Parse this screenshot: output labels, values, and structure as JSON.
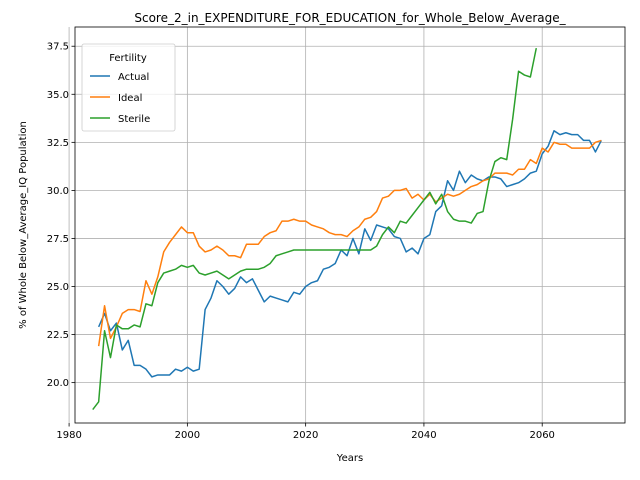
{
  "chart_data": {
    "type": "line",
    "title": "Score_2_in_EXPENDITURE_FOR_EDUCATION_for_Whole_Below_Average_",
    "xlabel": "Years",
    "ylabel": "% of Whole Below_Average_IQ Population",
    "xlim": [
      1981,
      2074
    ],
    "ylim": [
      17.9,
      38.5
    ],
    "xticks": [
      1980,
      2000,
      2020,
      2040,
      2060
    ],
    "xtick_labels": [
      "1980",
      "2000",
      "2020",
      "2040",
      "2060"
    ],
    "yticks": [
      20.0,
      22.5,
      25.0,
      27.5,
      30.0,
      32.5,
      35.0,
      37.5
    ],
    "ytick_labels": [
      "20.0",
      "22.5",
      "25.0",
      "27.5",
      "30.0",
      "32.5",
      "35.0",
      "37.5"
    ],
    "grid": true,
    "legend": {
      "title": "Fertility",
      "placement": "upper-left"
    },
    "series": [
      {
        "name": "Actual",
        "color": "#1f77b4",
        "points": [
          [
            1985,
            22.9
          ],
          [
            1986,
            23.6
          ],
          [
            1987,
            22.7
          ],
          [
            1988,
            23.1
          ],
          [
            1989,
            21.7
          ],
          [
            1990,
            22.2
          ],
          [
            1991,
            20.9
          ],
          [
            1992,
            20.9
          ],
          [
            1993,
            20.7
          ],
          [
            1994,
            20.3
          ],
          [
            1995,
            20.4
          ],
          [
            1996,
            20.4
          ],
          [
            1997,
            20.4
          ],
          [
            1998,
            20.7
          ],
          [
            1999,
            20.6
          ],
          [
            2000,
            20.8
          ],
          [
            2001,
            20.6
          ],
          [
            2002,
            20.7
          ],
          [
            2003,
            23.8
          ],
          [
            2004,
            24.4
          ],
          [
            2005,
            25.3
          ],
          [
            2006,
            25.0
          ],
          [
            2007,
            24.6
          ],
          [
            2008,
            24.9
          ],
          [
            2009,
            25.5
          ],
          [
            2010,
            25.2
          ],
          [
            2011,
            25.4
          ],
          [
            2012,
            24.8
          ],
          [
            2013,
            24.2
          ],
          [
            2014,
            24.5
          ],
          [
            2015,
            24.4
          ],
          [
            2016,
            24.3
          ],
          [
            2017,
            24.2
          ],
          [
            2018,
            24.7
          ],
          [
            2019,
            24.6
          ],
          [
            2020,
            25.0
          ],
          [
            2021,
            25.2
          ],
          [
            2022,
            25.3
          ],
          [
            2023,
            25.9
          ],
          [
            2024,
            26.0
          ],
          [
            2025,
            26.2
          ],
          [
            2026,
            26.9
          ],
          [
            2027,
            26.6
          ],
          [
            2028,
            27.5
          ],
          [
            2029,
            26.7
          ],
          [
            2030,
            28.0
          ],
          [
            2031,
            27.4
          ],
          [
            2032,
            28.2
          ],
          [
            2033,
            28.1
          ],
          [
            2034,
            28.0
          ],
          [
            2035,
            27.6
          ],
          [
            2036,
            27.5
          ],
          [
            2037,
            26.8
          ],
          [
            2038,
            27.0
          ],
          [
            2039,
            26.7
          ],
          [
            2040,
            27.5
          ],
          [
            2041,
            27.7
          ],
          [
            2042,
            28.9
          ],
          [
            2043,
            29.2
          ],
          [
            2044,
            30.5
          ],
          [
            2045,
            30.0
          ],
          [
            2046,
            31.0
          ],
          [
            2047,
            30.4
          ],
          [
            2048,
            30.8
          ],
          [
            2049,
            30.6
          ],
          [
            2050,
            30.5
          ],
          [
            2051,
            30.7
          ],
          [
            2052,
            30.7
          ],
          [
            2053,
            30.6
          ],
          [
            2054,
            30.2
          ],
          [
            2055,
            30.3
          ],
          [
            2056,
            30.4
          ],
          [
            2057,
            30.6
          ],
          [
            2058,
            30.9
          ],
          [
            2059,
            31.0
          ],
          [
            2060,
            31.9
          ],
          [
            2061,
            32.3
          ],
          [
            2062,
            33.1
          ],
          [
            2063,
            32.9
          ],
          [
            2064,
            33.0
          ],
          [
            2065,
            32.9
          ],
          [
            2066,
            32.9
          ],
          [
            2067,
            32.6
          ],
          [
            2068,
            32.6
          ],
          [
            2069,
            32.0
          ],
          [
            2070,
            32.6
          ]
        ]
      },
      {
        "name": "Ideal",
        "color": "#ff7f0e",
        "points": [
          [
            1985,
            21.9
          ],
          [
            1986,
            24.0
          ],
          [
            1987,
            22.3
          ],
          [
            1988,
            22.9
          ],
          [
            1989,
            23.6
          ],
          [
            1990,
            23.8
          ],
          [
            1991,
            23.8
          ],
          [
            1992,
            23.7
          ],
          [
            1993,
            25.3
          ],
          [
            1994,
            24.6
          ],
          [
            1995,
            25.5
          ],
          [
            1996,
            26.8
          ],
          [
            1997,
            27.3
          ],
          [
            1998,
            27.7
          ],
          [
            1999,
            28.1
          ],
          [
            2000,
            27.8
          ],
          [
            2001,
            27.8
          ],
          [
            2002,
            27.1
          ],
          [
            2003,
            26.8
          ],
          [
            2004,
            26.9
          ],
          [
            2005,
            27.1
          ],
          [
            2006,
            26.9
          ],
          [
            2007,
            26.6
          ],
          [
            2008,
            26.6
          ],
          [
            2009,
            26.5
          ],
          [
            2010,
            27.2
          ],
          [
            2011,
            27.2
          ],
          [
            2012,
            27.2
          ],
          [
            2013,
            27.6
          ],
          [
            2014,
            27.8
          ],
          [
            2015,
            27.9
          ],
          [
            2016,
            28.4
          ],
          [
            2017,
            28.4
          ],
          [
            2018,
            28.5
          ],
          [
            2019,
            28.4
          ],
          [
            2020,
            28.4
          ],
          [
            2021,
            28.2
          ],
          [
            2022,
            28.1
          ],
          [
            2023,
            28.0
          ],
          [
            2024,
            27.8
          ],
          [
            2025,
            27.7
          ],
          [
            2026,
            27.7
          ],
          [
            2027,
            27.6
          ],
          [
            2028,
            27.9
          ],
          [
            2029,
            28.1
          ],
          [
            2030,
            28.5
          ],
          [
            2031,
            28.6
          ],
          [
            2032,
            28.9
          ],
          [
            2033,
            29.6
          ],
          [
            2034,
            29.7
          ],
          [
            2035,
            30.0
          ],
          [
            2036,
            30.0
          ],
          [
            2037,
            30.1
          ],
          [
            2038,
            29.6
          ],
          [
            2039,
            29.8
          ],
          [
            2040,
            29.5
          ],
          [
            2041,
            29.8
          ],
          [
            2042,
            29.4
          ],
          [
            2043,
            29.6
          ],
          [
            2044,
            29.8
          ],
          [
            2045,
            29.7
          ],
          [
            2046,
            29.8
          ],
          [
            2047,
            30.0
          ],
          [
            2048,
            30.2
          ],
          [
            2049,
            30.3
          ],
          [
            2050,
            30.5
          ],
          [
            2051,
            30.6
          ],
          [
            2052,
            30.9
          ],
          [
            2053,
            30.9
          ],
          [
            2054,
            30.9
          ],
          [
            2055,
            30.8
          ],
          [
            2056,
            31.1
          ],
          [
            2057,
            31.1
          ],
          [
            2058,
            31.6
          ],
          [
            2059,
            31.4
          ],
          [
            2060,
            32.2
          ],
          [
            2061,
            32.0
          ],
          [
            2062,
            32.5
          ],
          [
            2063,
            32.4
          ],
          [
            2064,
            32.4
          ],
          [
            2065,
            32.2
          ],
          [
            2066,
            32.2
          ],
          [
            2067,
            32.2
          ],
          [
            2068,
            32.2
          ],
          [
            2069,
            32.5
          ],
          [
            2070,
            32.6
          ]
        ]
      },
      {
        "name": "Sterile",
        "color": "#2ca02c",
        "points": [
          [
            1984,
            18.6
          ],
          [
            1985,
            19.0
          ],
          [
            1986,
            22.7
          ],
          [
            1987,
            21.3
          ],
          [
            1988,
            23.0
          ],
          [
            1989,
            22.8
          ],
          [
            1990,
            22.8
          ],
          [
            1991,
            23.0
          ],
          [
            1992,
            22.9
          ],
          [
            1993,
            24.1
          ],
          [
            1994,
            24.0
          ],
          [
            1995,
            25.2
          ],
          [
            1996,
            25.7
          ],
          [
            1997,
            25.8
          ],
          [
            1998,
            25.9
          ],
          [
            1999,
            26.1
          ],
          [
            2000,
            26.0
          ],
          [
            2001,
            26.1
          ],
          [
            2002,
            25.7
          ],
          [
            2003,
            25.6
          ],
          [
            2004,
            25.7
          ],
          [
            2005,
            25.8
          ],
          [
            2006,
            25.6
          ],
          [
            2007,
            25.4
          ],
          [
            2008,
            25.6
          ],
          [
            2009,
            25.8
          ],
          [
            2010,
            25.9
          ],
          [
            2011,
            25.9
          ],
          [
            2012,
            25.9
          ],
          [
            2013,
            26.0
          ],
          [
            2014,
            26.2
          ],
          [
            2015,
            26.6
          ],
          [
            2016,
            26.7
          ],
          [
            2017,
            26.8
          ],
          [
            2018,
            26.9
          ],
          [
            2019,
            26.9
          ],
          [
            2020,
            26.9
          ],
          [
            2021,
            26.9
          ],
          [
            2022,
            26.9
          ],
          [
            2023,
            26.9
          ],
          [
            2024,
            26.9
          ],
          [
            2025,
            26.9
          ],
          [
            2026,
            26.9
          ],
          [
            2027,
            26.9
          ],
          [
            2028,
            26.9
          ],
          [
            2029,
            26.9
          ],
          [
            2030,
            26.9
          ],
          [
            2031,
            26.9
          ],
          [
            2032,
            27.1
          ],
          [
            2033,
            27.7
          ],
          [
            2034,
            28.1
          ],
          [
            2035,
            27.8
          ],
          [
            2036,
            28.4
          ],
          [
            2037,
            28.3
          ],
          [
            2038,
            28.7
          ],
          [
            2039,
            29.1
          ],
          [
            2040,
            29.5
          ],
          [
            2041,
            29.9
          ],
          [
            2042,
            29.3
          ],
          [
            2043,
            29.8
          ],
          [
            2044,
            28.9
          ],
          [
            2045,
            28.5
          ],
          [
            2046,
            28.4
          ],
          [
            2047,
            28.4
          ],
          [
            2048,
            28.3
          ],
          [
            2049,
            28.8
          ],
          [
            2050,
            28.9
          ],
          [
            2051,
            30.5
          ],
          [
            2052,
            31.5
          ],
          [
            2053,
            31.7
          ],
          [
            2054,
            31.6
          ],
          [
            2055,
            33.7
          ],
          [
            2056,
            36.2
          ],
          [
            2057,
            36.0
          ],
          [
            2058,
            35.9
          ],
          [
            2059,
            37.4
          ]
        ]
      }
    ]
  }
}
